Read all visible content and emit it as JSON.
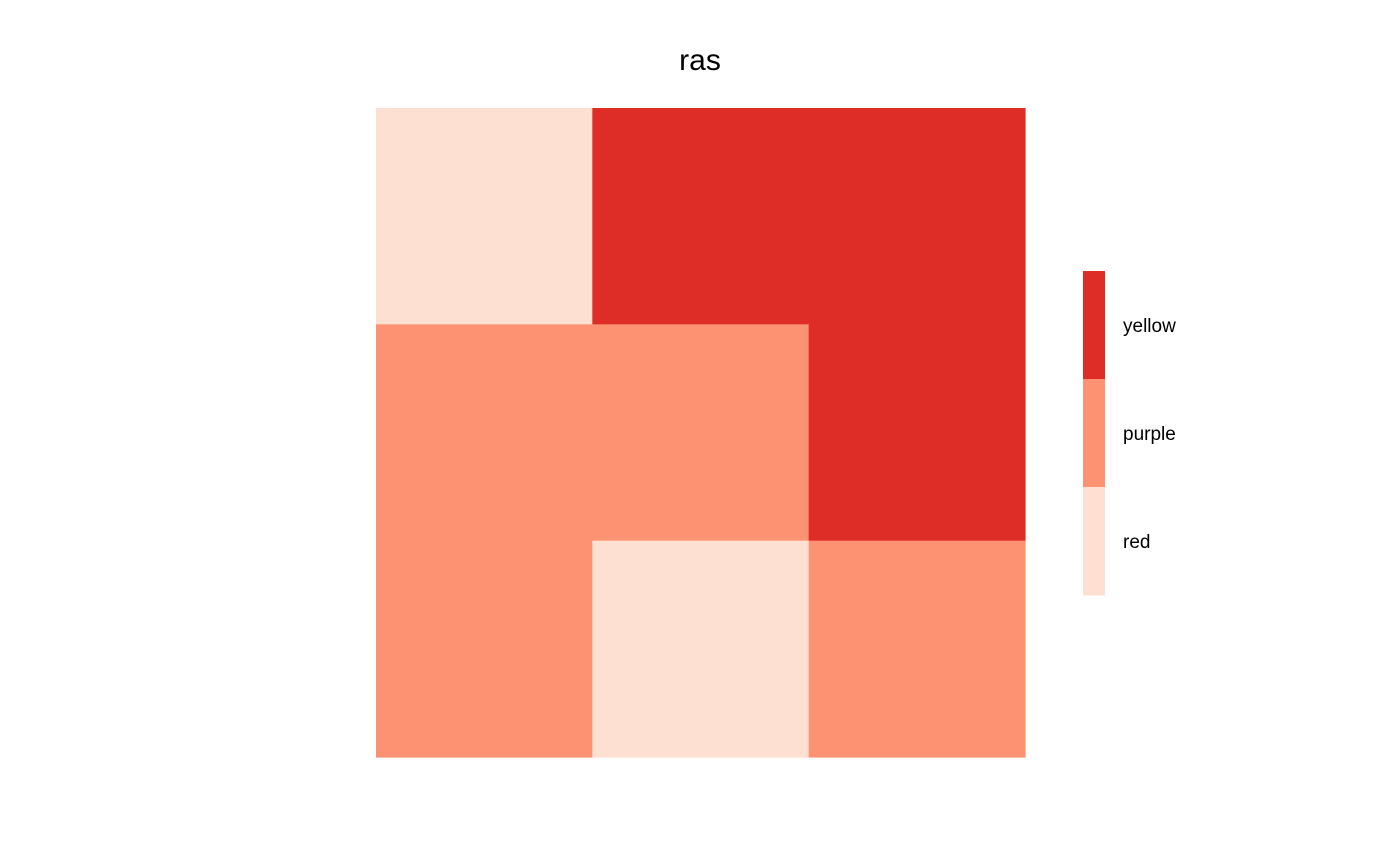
{
  "chart_data": {
    "type": "heatmap",
    "title": "ras",
    "rows": 3,
    "cols": 3,
    "cells": [
      [
        "red",
        "yellow",
        "yellow"
      ],
      [
        "purple",
        "purple",
        "yellow"
      ],
      [
        "purple",
        "red",
        "purple"
      ]
    ],
    "legend": {
      "placement": "right",
      "entries": [
        {
          "label": "yellow",
          "color": "#DE2D26"
        },
        {
          "label": "purple",
          "color": "#FC9272"
        },
        {
          "label": "red",
          "color": "#FEE0D2"
        }
      ]
    },
    "grid": false
  }
}
